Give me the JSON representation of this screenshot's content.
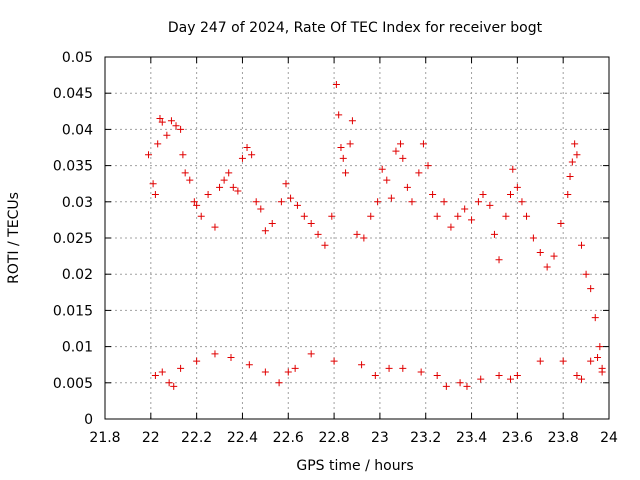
{
  "chart_data": {
    "type": "scatter",
    "title": "Day 247 of 2024, Rate Of TEC Index for receiver bogt",
    "xlabel": "GPS time / hours",
    "ylabel": "ROTI / TECUs",
    "xlim": [
      21.8,
      24
    ],
    "ylim": [
      0,
      0.05
    ],
    "x_ticks": [
      "21.8",
      "22",
      "22.2",
      "22.4",
      "22.6",
      "22.8",
      "23",
      "23.2",
      "23.4",
      "23.6",
      "23.8",
      "24"
    ],
    "y_ticks": [
      "0",
      "0.005",
      "0.01",
      "0.015",
      "0.02",
      "0.025",
      "0.03",
      "0.035",
      "0.04",
      "0.045",
      "0.05"
    ],
    "grid": true,
    "marker": "+",
    "color": "#e00000",
    "series": [
      {
        "points": [
          [
            21.99,
            0.0365
          ],
          [
            22.01,
            0.0325
          ],
          [
            22.02,
            0.031
          ],
          [
            22.03,
            0.038
          ],
          [
            22.04,
            0.0415
          ],
          [
            22.05,
            0.041
          ],
          [
            22.07,
            0.0392
          ],
          [
            22.09,
            0.0412
          ],
          [
            22.11,
            0.0405
          ],
          [
            22.13,
            0.04
          ],
          [
            22.14,
            0.0365
          ],
          [
            22.15,
            0.034
          ],
          [
            22.17,
            0.033
          ],
          [
            22.19,
            0.03
          ],
          [
            22.2,
            0.0295
          ],
          [
            22.22,
            0.028
          ],
          [
            22.25,
            0.031
          ],
          [
            22.28,
            0.0265
          ],
          [
            22.3,
            0.032
          ],
          [
            22.32,
            0.033
          ],
          [
            22.34,
            0.034
          ],
          [
            22.36,
            0.032
          ],
          [
            22.38,
            0.0315
          ],
          [
            22.4,
            0.036
          ],
          [
            22.42,
            0.0375
          ],
          [
            22.44,
            0.0365
          ],
          [
            22.46,
            0.03
          ],
          [
            22.48,
            0.029
          ],
          [
            22.5,
            0.026
          ],
          [
            22.53,
            0.027
          ],
          [
            22.57,
            0.03
          ],
          [
            22.59,
            0.0325
          ],
          [
            22.61,
            0.0305
          ],
          [
            22.64,
            0.0295
          ],
          [
            22.67,
            0.028
          ],
          [
            22.7,
            0.027
          ],
          [
            22.73,
            0.0255
          ],
          [
            22.76,
            0.024
          ],
          [
            22.79,
            0.028
          ],
          [
            22.81,
            0.0462
          ],
          [
            22.82,
            0.042
          ],
          [
            22.83,
            0.0375
          ],
          [
            22.84,
            0.036
          ],
          [
            22.85,
            0.034
          ],
          [
            22.87,
            0.038
          ],
          [
            22.88,
            0.0412
          ],
          [
            22.9,
            0.0255
          ],
          [
            22.93,
            0.025
          ],
          [
            22.96,
            0.028
          ],
          [
            22.99,
            0.03
          ],
          [
            23.01,
            0.0345
          ],
          [
            23.03,
            0.033
          ],
          [
            23.05,
            0.0305
          ],
          [
            23.07,
            0.037
          ],
          [
            23.09,
            0.038
          ],
          [
            23.1,
            0.036
          ],
          [
            23.12,
            0.032
          ],
          [
            23.14,
            0.03
          ],
          [
            23.17,
            0.034
          ],
          [
            23.19,
            0.038
          ],
          [
            23.21,
            0.035
          ],
          [
            23.23,
            0.031
          ],
          [
            23.25,
            0.028
          ],
          [
            23.28,
            0.03
          ],
          [
            23.31,
            0.0265
          ],
          [
            23.34,
            0.028
          ],
          [
            23.37,
            0.029
          ],
          [
            23.4,
            0.0275
          ],
          [
            23.43,
            0.03
          ],
          [
            23.45,
            0.031
          ],
          [
            23.48,
            0.0295
          ],
          [
            23.5,
            0.0255
          ],
          [
            23.52,
            0.022
          ],
          [
            23.55,
            0.028
          ],
          [
            23.57,
            0.031
          ],
          [
            23.58,
            0.0345
          ],
          [
            23.6,
            0.032
          ],
          [
            23.62,
            0.03
          ],
          [
            23.64,
            0.028
          ],
          [
            23.67,
            0.025
          ],
          [
            23.7,
            0.023
          ],
          [
            23.73,
            0.021
          ],
          [
            23.76,
            0.0225
          ],
          [
            23.79,
            0.027
          ],
          [
            23.82,
            0.031
          ],
          [
            23.83,
            0.0335
          ],
          [
            23.84,
            0.0355
          ],
          [
            23.85,
            0.038
          ],
          [
            23.86,
            0.0365
          ],
          [
            23.88,
            0.024
          ],
          [
            23.9,
            0.02
          ],
          [
            23.92,
            0.018
          ],
          [
            23.94,
            0.014
          ],
          [
            23.96,
            0.01
          ],
          [
            23.97,
            0.007
          ],
          [
            22.02,
            0.006
          ],
          [
            22.05,
            0.0065
          ],
          [
            22.08,
            0.005
          ],
          [
            22.1,
            0.0045
          ],
          [
            22.13,
            0.007
          ],
          [
            22.2,
            0.008
          ],
          [
            22.28,
            0.009
          ],
          [
            22.35,
            0.0085
          ],
          [
            22.43,
            0.0075
          ],
          [
            22.5,
            0.0065
          ],
          [
            22.56,
            0.005
          ],
          [
            22.6,
            0.0065
          ],
          [
            22.63,
            0.007
          ],
          [
            22.7,
            0.009
          ],
          [
            22.8,
            0.008
          ],
          [
            22.92,
            0.0075
          ],
          [
            22.98,
            0.006
          ],
          [
            23.04,
            0.007
          ],
          [
            23.1,
            0.007
          ],
          [
            23.18,
            0.0065
          ],
          [
            23.25,
            0.006
          ],
          [
            23.29,
            0.0045
          ],
          [
            23.35,
            0.005
          ],
          [
            23.38,
            0.0045
          ],
          [
            23.44,
            0.0055
          ],
          [
            23.52,
            0.006
          ],
          [
            23.57,
            0.0055
          ],
          [
            23.6,
            0.006
          ],
          [
            23.7,
            0.008
          ],
          [
            23.8,
            0.008
          ],
          [
            23.86,
            0.006
          ],
          [
            23.88,
            0.0055
          ],
          [
            23.92,
            0.008
          ],
          [
            23.95,
            0.0085
          ],
          [
            23.97,
            0.0065
          ]
        ]
      }
    ]
  }
}
